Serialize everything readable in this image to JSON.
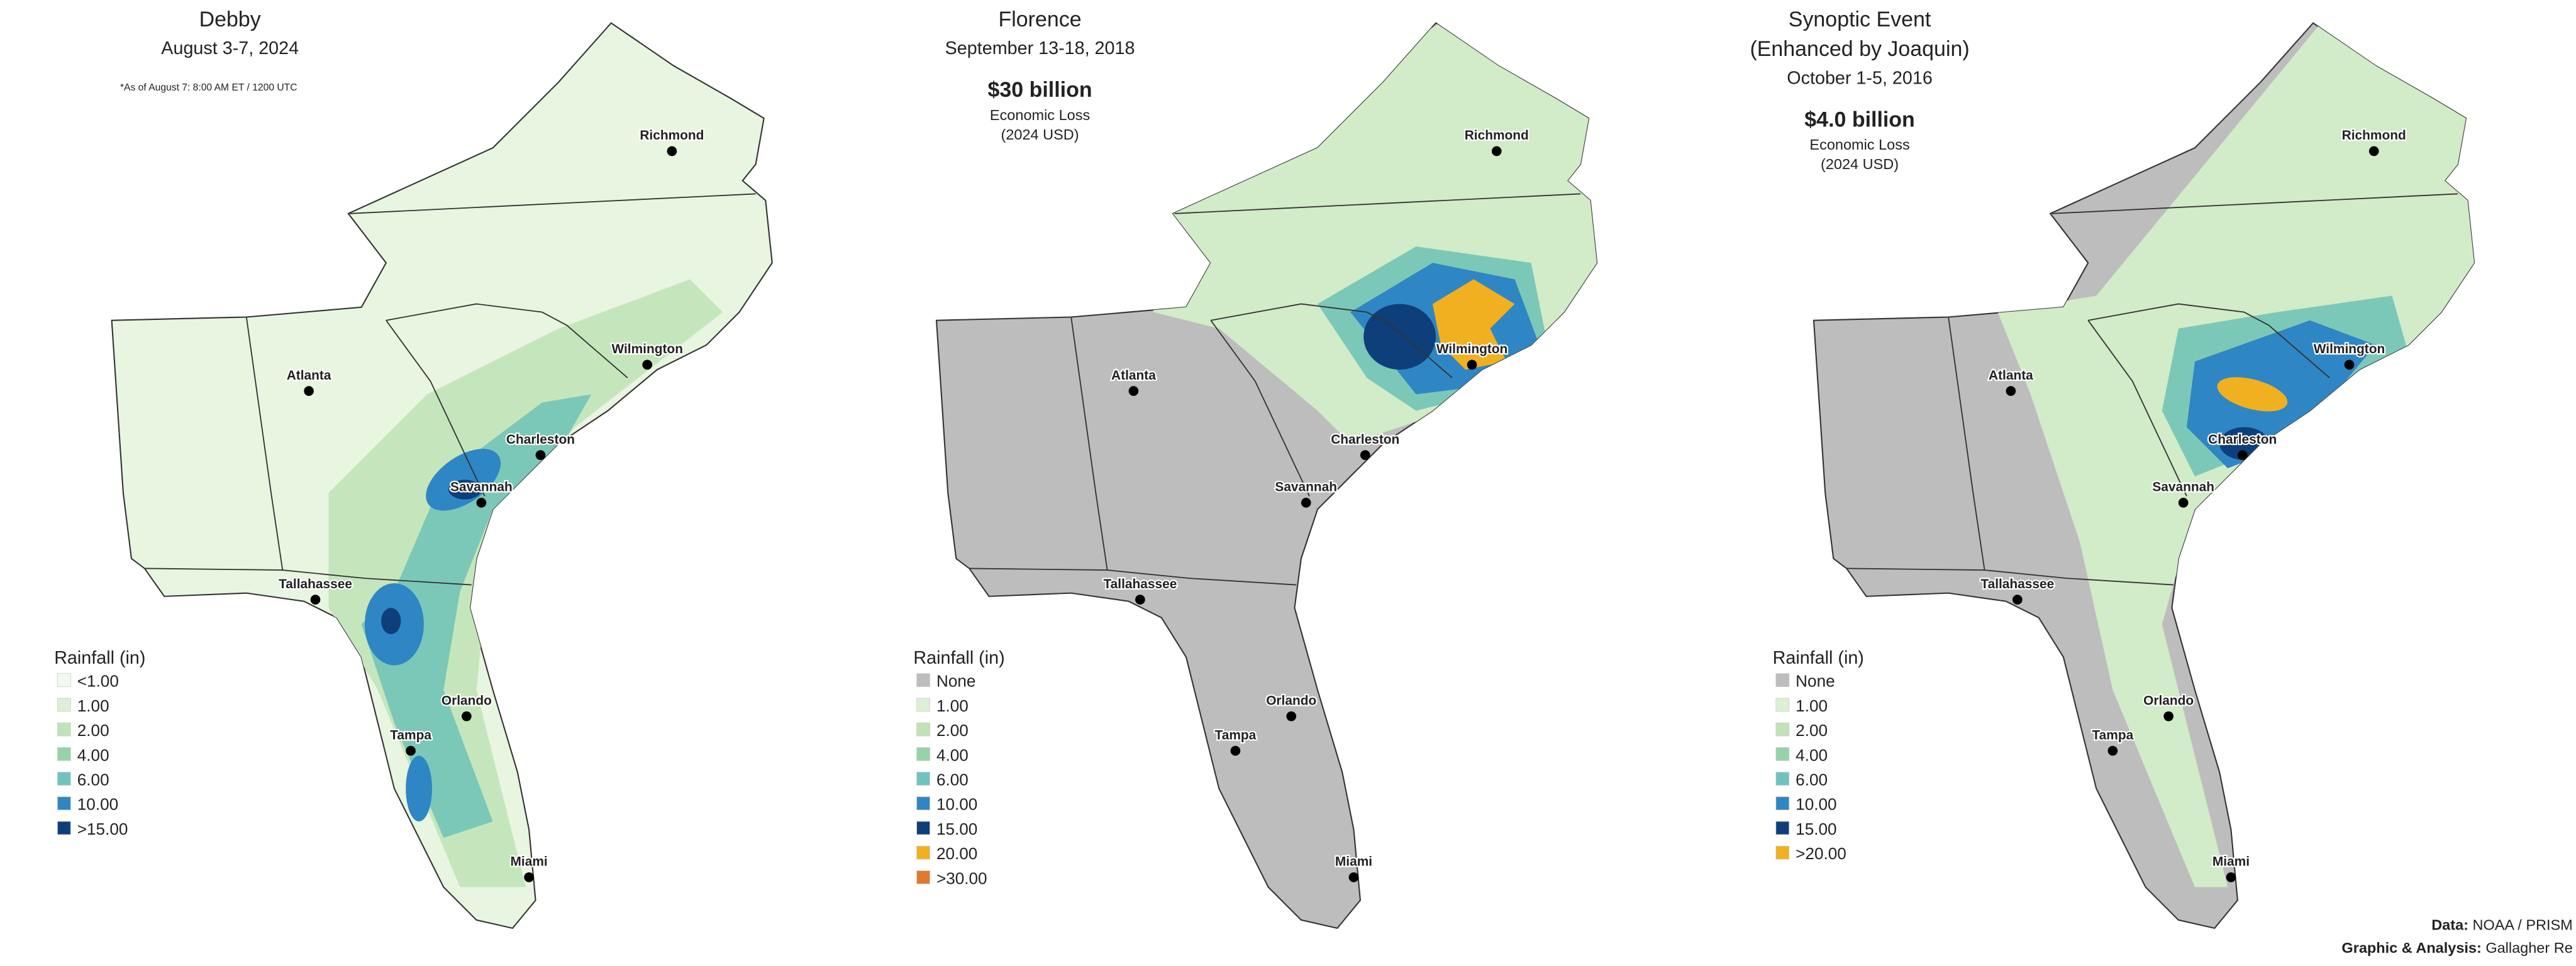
{
  "panels": [
    {
      "title": [
        "Debby"
      ],
      "subtitle": "August 3-7, 2024",
      "note": "*As of August 7: 8:00 AM ET / 1200 UTC",
      "legend": {
        "title": "Rainfall (in)",
        "items": [
          {
            "label": "<1.00",
            "color": "#f3f9ee"
          },
          {
            "label": "1.00",
            "color": "#dcf0d4"
          },
          {
            "label": "2.00",
            "color": "#bfe3b6"
          },
          {
            "label": "4.00",
            "color": "#97d3a8"
          },
          {
            "label": "6.00",
            "color": "#6fc3bf"
          },
          {
            "label": "10.00",
            "color": "#2f86c4"
          },
          {
            "label": ">15.00",
            "color": "#0e3f7a"
          }
        ]
      },
      "cities": [
        "Richmond",
        "Wilmington",
        "Atlanta",
        "Charleston",
        "Savannah",
        "Tallahassee",
        "Orlando",
        "Tampa",
        "Miami"
      ]
    },
    {
      "title": [
        "Florence"
      ],
      "subtitle": "September 13-18, 2018",
      "loss": "$30 billion",
      "loss_label": "Economic Loss",
      "loss_unit": "(2024 USD)",
      "legend": {
        "title": "Rainfall (in)",
        "items": [
          {
            "label": "None",
            "color": "#bdbdbd"
          },
          {
            "label": "1.00",
            "color": "#dcf0d4"
          },
          {
            "label": "2.00",
            "color": "#bfe3b6"
          },
          {
            "label": "4.00",
            "color": "#97d3a8"
          },
          {
            "label": "6.00",
            "color": "#6fc3bf"
          },
          {
            "label": "10.00",
            "color": "#2f86c4"
          },
          {
            "label": "15.00",
            "color": "#0e3f7a"
          },
          {
            "label": "20.00",
            "color": "#f0b020"
          },
          {
            "label": ">30.00",
            "color": "#e07a30"
          }
        ]
      },
      "cities": [
        "Richmond",
        "Wilmington",
        "Atlanta",
        "Charleston",
        "Savannah",
        "Tallahassee",
        "Orlando",
        "Tampa",
        "Miami"
      ]
    },
    {
      "title": [
        "Synoptic Event",
        "(Enhanced by Joaquin)"
      ],
      "subtitle": "October 1-5, 2016",
      "loss": "$4.0 billion",
      "loss_label": "Economic Loss",
      "loss_unit": "(2024 USD)",
      "legend": {
        "title": "Rainfall (in)",
        "items": [
          {
            "label": "None",
            "color": "#bdbdbd"
          },
          {
            "label": "1.00",
            "color": "#dcf0d4"
          },
          {
            "label": "2.00",
            "color": "#bfe3b6"
          },
          {
            "label": "4.00",
            "color": "#97d3a8"
          },
          {
            "label": "6.00",
            "color": "#6fc3bf"
          },
          {
            "label": "10.00",
            "color": "#2f86c4"
          },
          {
            "label": "15.00",
            "color": "#0e3f7a"
          },
          {
            "label": ">20.00",
            "color": "#f0b020"
          }
        ]
      },
      "cities": [
        "Richmond",
        "Wilmington",
        "Atlanta",
        "Charleston",
        "Savannah",
        "Tallahassee",
        "Orlando",
        "Tampa",
        "Miami"
      ]
    }
  ],
  "footer": {
    "data_label": "Data:",
    "data_value": "NOAA / PRISM",
    "graphic_label": "Graphic & Analysis:",
    "graphic_value": "Gallagher Re"
  }
}
